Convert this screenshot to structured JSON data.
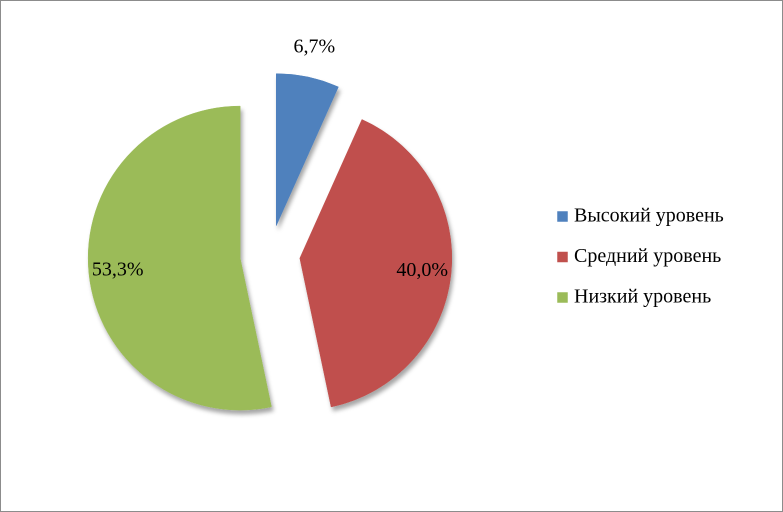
{
  "chart_data": {
    "type": "pie",
    "categories": [
      "Высокий уровень",
      "Средний уровень",
      "Низкий уровень"
    ],
    "values": [
      6.7,
      40.0,
      53.3
    ],
    "value_labels": [
      "6,7%",
      "40,0%",
      "53,3%"
    ],
    "colors": [
      "#4f81bd",
      "#c0504d",
      "#9bbb59"
    ],
    "legend": "right"
  }
}
